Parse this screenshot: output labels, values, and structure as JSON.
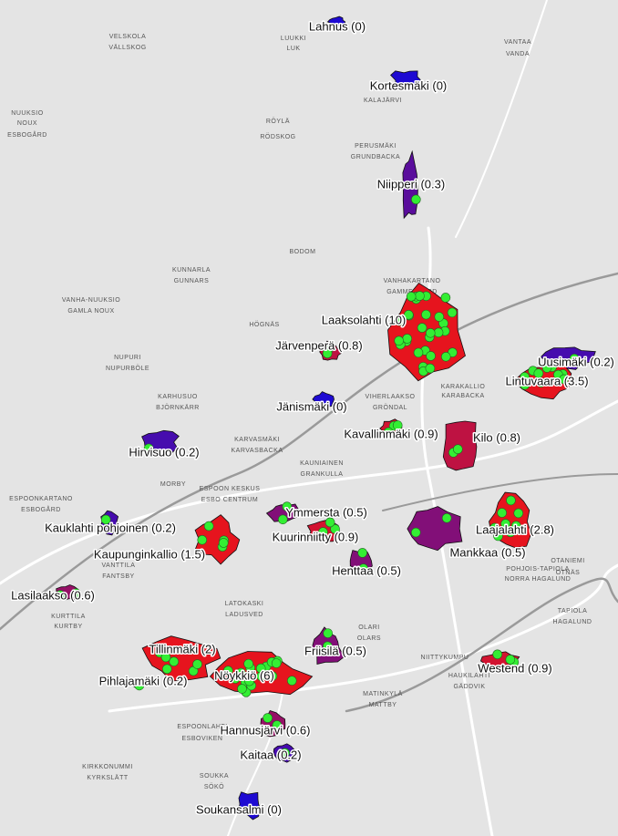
{
  "regions": [
    {
      "label": "Lahnus (0)",
      "value": 0
    },
    {
      "label": "Kortesmäki (0)",
      "value": 0
    },
    {
      "label": "Niipperi (0.3)",
      "value": 0.3
    },
    {
      "label": "Laaksolahti (10)",
      "value": 10
    },
    {
      "label": "Järvenperä (0.8)",
      "value": 0.8
    },
    {
      "label": "Uusimäki (0.2)",
      "value": 0.2
    },
    {
      "label": "Lintuvaara (3.5)",
      "value": 3.5
    },
    {
      "label": "Jänismäki (0)",
      "value": 0
    },
    {
      "label": "Kavallinmäki (0.9)",
      "value": 0.9
    },
    {
      "label": "Kilo (0.8)",
      "value": 0.8
    },
    {
      "label": "Hirvisuo (0.2)",
      "value": 0.2
    },
    {
      "label": "Ymmersta (0.5)",
      "value": 0.5
    },
    {
      "label": "Laajalahti (2.8)",
      "value": 2.8
    },
    {
      "label": "Kauklahti pohjoinen (0.2)",
      "value": 0.2
    },
    {
      "label": "Kuurinniitty (0.9)",
      "value": 0.9
    },
    {
      "label": "Kaupunginkallio (1.5)",
      "value": 1.5
    },
    {
      "label": "Mankkaa (0.5)",
      "value": 0.5
    },
    {
      "label": "Henttaa (0.5)",
      "value": 0.5
    },
    {
      "label": "Lasilaakso (0.6)",
      "value": 0.6
    },
    {
      "label": "Tillinmäki (2)",
      "value": 2
    },
    {
      "label": "Friisilä (0.5)",
      "value": 0.5
    },
    {
      "label": "Westend (0.9)",
      "value": 0.9
    },
    {
      "label": "Nöykkiö (6)",
      "value": 6
    },
    {
      "label": "Pihlajamäki (0.2)",
      "value": 0.2
    },
    {
      "label": "Hannusjärvi (0.6)",
      "value": 0.6
    },
    {
      "label": "Kaitaa (0.2)",
      "value": 0.2
    },
    {
      "label": "Soukansalmi (0)",
      "value": 0
    }
  ],
  "place_names": [
    "VELSKOLA",
    "VÄLLSKOG",
    "LUUKKI",
    "LUK",
    "VANTAA",
    "VANDA",
    "KALAJÄRVI",
    "NUUKSIO",
    "NOUX",
    "RÖYLÄ",
    "RÖDSKOG",
    "PERUSMÄKI",
    "GRUNDBACKA",
    "ESBOGÅRD",
    "BODOM",
    "VANHAKARTANO",
    "GAMMELGÅRD",
    "KUNNARLA",
    "GUNNARS",
    "VANHA-NUUKSIO",
    "GAMLA NOUX",
    "HÖGNÄS",
    "NUPURI",
    "NUPURBÖLE",
    "KARHUSUO",
    "BJÖRNKÄRR",
    "KARVASMÄKI",
    "KARVASBACKA",
    "KAUNIAINEN",
    "GRANKULLA",
    "ESPOONKARTANO",
    "ESBOGÅRD",
    "ESPOON KESKUS",
    "ESBO CENTRUM",
    "MORBY",
    "VANTTILA",
    "FANTSBY",
    "LATOKASKI",
    "LADUSVED",
    "KURTTILA",
    "KURTBY",
    "OLARI",
    "OLARS",
    "TAPIOLA",
    "HAGALUND",
    "OTANIEMI",
    "OTNÄS",
    "MATINKYLÄ",
    "MATTBY",
    "HAUKILAHTI",
    "GÄDDVIK",
    "ESPOONLAHTI",
    "ESBOVIKEN",
    "SOUKKA",
    "SÖKÖ",
    "KIRKKONUMMI",
    "KYRKSLÄTT",
    "NIITTYKUMPU",
    "VIHERLAAKSO",
    "GRÖNDAL",
    "KARAKALLIO",
    "KARABACKA",
    "NORRA HAGALUND",
    "POHJOIS-TAPIOLA"
  ]
}
